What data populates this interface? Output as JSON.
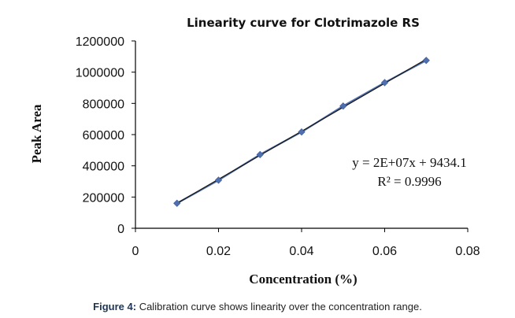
{
  "chart_data": {
    "type": "scatter",
    "title": "Linearity curve for Clotrimazole RS",
    "xlabel": "Concentration (%)",
    "ylabel": "Peak Area",
    "xlim": [
      0,
      0.08
    ],
    "ylim": [
      0,
      1200000
    ],
    "x_ticks": [
      0,
      0.02,
      0.04,
      0.06,
      0.08
    ],
    "x_tick_labels": [
      "0",
      "0.02",
      "0.04",
      "0.06",
      "0.08"
    ],
    "y_ticks": [
      0,
      200000,
      400000,
      600000,
      800000,
      1000000,
      1200000
    ],
    "y_tick_labels": [
      "0",
      "200000",
      "400000",
      "600000",
      "800000",
      "1000000",
      "1200000"
    ],
    "grid": false,
    "legend": "none",
    "series": [
      {
        "x": [
          0.01,
          0.02,
          0.03,
          0.04,
          0.05,
          0.06,
          0.07
        ],
        "y": [
          160000,
          308000,
          472000,
          617000,
          783000,
          933000,
          1075000
        ],
        "marker": "diamond",
        "color": "#4f6fae"
      }
    ],
    "trendline": {
      "type": "linear",
      "color": "#1a1a1a",
      "equation": "y = 2E+07x + 9434.1",
      "r_squared": "R² = 0.9996"
    }
  },
  "caption": {
    "label": "Figure 4:",
    "text": " Calibration curve shows linearity over the concentration range."
  }
}
